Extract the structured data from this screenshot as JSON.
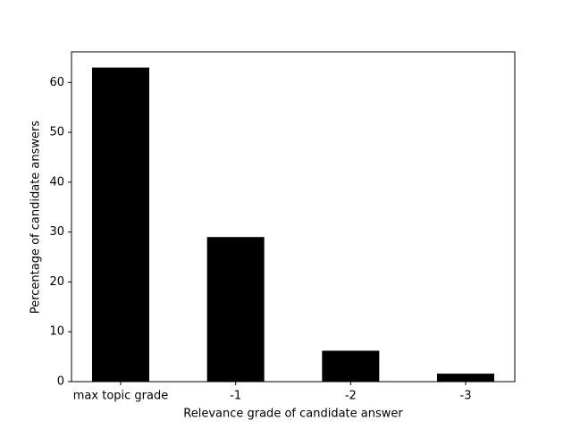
{
  "chart_data": {
    "type": "bar",
    "x_label": "Relevance grade of candidate answer",
    "y_label": "Percentage of candidate answers",
    "categories": [
      "max topic grade",
      "-1",
      "-2",
      "-3"
    ],
    "values": [
      63,
      29,
      6.2,
      1.6
    ],
    "color": "#000000",
    "ylim": [
      0,
      66.15
    ],
    "yticks": [
      0,
      10,
      20,
      30,
      40,
      50,
      60
    ],
    "grid": false
  }
}
